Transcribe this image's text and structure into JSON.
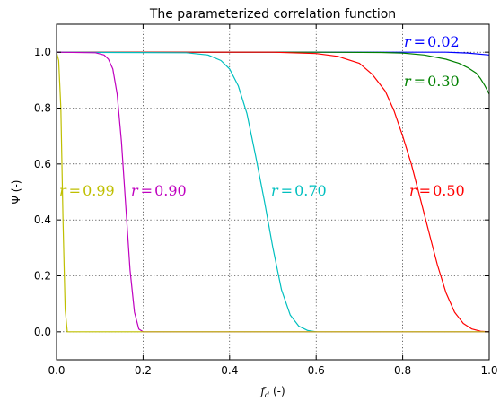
{
  "chart_data": {
    "type": "line",
    "title": "The parameterized correlation function",
    "xlabel": {
      "symbol": "f",
      "sub": "d",
      "unit": "(-)"
    },
    "ylabel": "Ψ (-)",
    "xlim": [
      0.0,
      1.0
    ],
    "ylim": [
      -0.1,
      1.1
    ],
    "xticks": [
      0.0,
      0.2,
      0.4,
      0.6,
      0.8,
      1.0
    ],
    "xtick_labels": [
      "0.0",
      "0.2",
      "0.4",
      "0.6",
      "0.8",
      "1.0"
    ],
    "yticks": [
      0.0,
      0.2,
      0.4,
      0.6,
      0.8,
      1.0
    ],
    "ytick_labels": [
      "0.0",
      "0.2",
      "0.4",
      "0.6",
      "0.8",
      "1.0"
    ],
    "grid": true,
    "series": [
      {
        "name": "r = 0.02",
        "r": "r",
        "eq": "=",
        "value": "0.02",
        "color": "#0000ff",
        "x": [
          0.0,
          0.5,
          0.8,
          0.9,
          0.95,
          1.0
        ],
        "y": [
          1.0,
          1.0,
          1.0,
          1.0,
          0.997,
          0.99
        ]
      },
      {
        "name": "r = 0.30",
        "r": "r",
        "eq": "=",
        "value": "0.30",
        "color": "#008000",
        "x": [
          0.0,
          0.6,
          0.75,
          0.8,
          0.85,
          0.9,
          0.93,
          0.95,
          0.97,
          0.98,
          0.99,
          1.0
        ],
        "y": [
          1.0,
          1.0,
          0.999,
          0.997,
          0.99,
          0.975,
          0.96,
          0.945,
          0.925,
          0.905,
          0.88,
          0.85
        ]
      },
      {
        "name": "r = 0.50",
        "r": "r",
        "eq": "=",
        "value": "0.50",
        "color": "#ff0000",
        "x": [
          0.0,
          0.5,
          0.6,
          0.65,
          0.7,
          0.73,
          0.76,
          0.78,
          0.8,
          0.82,
          0.84,
          0.86,
          0.88,
          0.9,
          0.92,
          0.94,
          0.96,
          0.98,
          1.0
        ],
        "y": [
          1.0,
          1.0,
          0.995,
          0.985,
          0.96,
          0.92,
          0.86,
          0.79,
          0.7,
          0.6,
          0.48,
          0.36,
          0.24,
          0.14,
          0.07,
          0.03,
          0.01,
          0.002,
          0.0
        ]
      },
      {
        "name": "r = 0.70",
        "r": "r",
        "eq": "=",
        "value": "0.70",
        "color": "#00bfbf",
        "x": [
          0.0,
          0.3,
          0.35,
          0.38,
          0.4,
          0.42,
          0.44,
          0.46,
          0.48,
          0.5,
          0.52,
          0.54,
          0.56,
          0.58,
          0.6
        ],
        "y": [
          1.0,
          0.998,
          0.99,
          0.97,
          0.94,
          0.88,
          0.78,
          0.63,
          0.47,
          0.3,
          0.15,
          0.06,
          0.02,
          0.005,
          0.0
        ]
      },
      {
        "name": "r = 0.90",
        "r": "r",
        "eq": "=",
        "value": "0.90",
        "color": "#bf00bf",
        "x": [
          0.0,
          0.09,
          0.11,
          0.12,
          0.13,
          0.14,
          0.15,
          0.16,
          0.17,
          0.18,
          0.19,
          0.2,
          1.0
        ],
        "y": [
          1.0,
          0.998,
          0.99,
          0.975,
          0.94,
          0.85,
          0.68,
          0.45,
          0.22,
          0.07,
          0.01,
          0.0,
          0.0
        ]
      },
      {
        "name": "r = 0.99",
        "r": "r",
        "eq": "=",
        "value": "0.99",
        "color": "#bfbf00",
        "x": [
          0.0,
          0.005,
          0.01,
          0.015,
          0.02,
          0.025,
          1.0
        ],
        "y": [
          1.0,
          0.97,
          0.8,
          0.4,
          0.08,
          0.0,
          0.0
        ]
      }
    ]
  }
}
